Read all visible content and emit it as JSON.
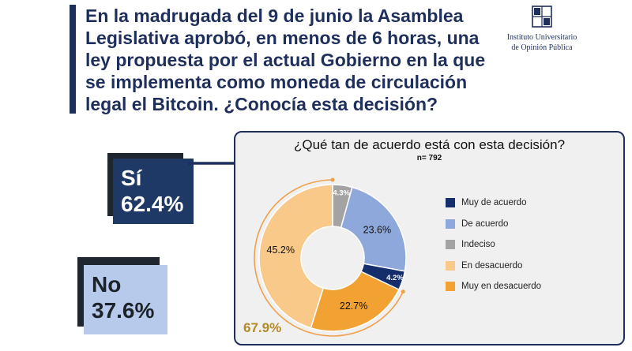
{
  "question": "En la madrugada del 9 de junio la Asamblea Legislativa aprobó, en menos de 6 horas, una ley propuesta por el actual Gobierno en la que se implementa como moneda de circulación legal el Bitcoin. ¿Conocía esta decisión?",
  "logo": {
    "line1": "Instituto Universitario",
    "line2": "de Opinión Pública",
    "icon": "institute-crest-icon"
  },
  "answers": {
    "si": {
      "label": "Sí",
      "value": "62.4%"
    },
    "no": {
      "label": "No",
      "value": "37.6%"
    }
  },
  "colors": {
    "navy": "#1f2f5c",
    "si_card": "#1f3966",
    "no_card": "#b8caeb",
    "bracket": "#f0a04a"
  },
  "chart_data": {
    "type": "pie",
    "title": "¿Qué tan de acuerdo está con esta decisión?",
    "subtitle": "n= 792",
    "categories": [
      "Muy de acuerdo",
      "De acuerdo",
      "Indeciso",
      "En desacuerdo",
      "Muy en desacuerdo"
    ],
    "values": [
      4.2,
      23.6,
      4.3,
      45.2,
      22.7
    ],
    "value_labels": [
      "4.2%",
      "23.6%",
      "4.3%",
      "45.2%",
      "22.7%"
    ],
    "colors": [
      "#142d6b",
      "#8fa8dc",
      "#a3a3a3",
      "#f8c988",
      "#f2a232"
    ],
    "donut": true,
    "legend_position": "right",
    "grouped_label": "67.9%"
  }
}
